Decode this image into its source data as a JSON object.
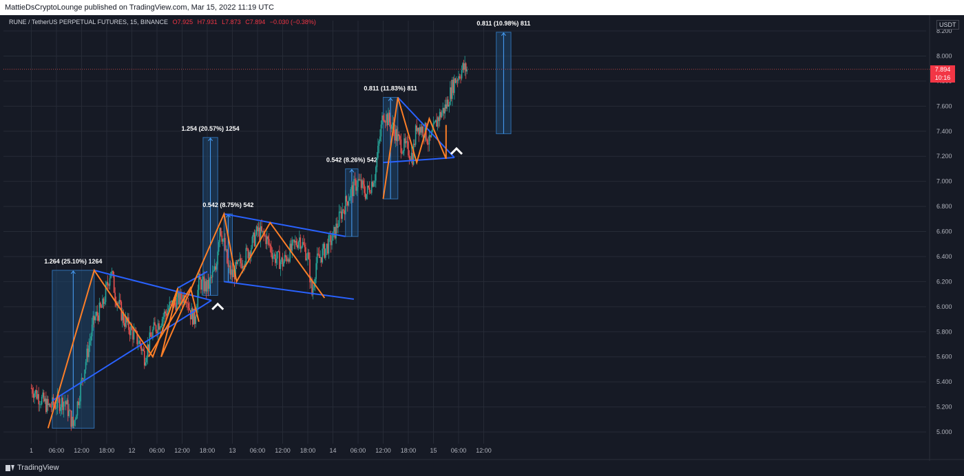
{
  "header": {
    "publish_text": "MattieDsCryptoLounge published on TradingView.com, Mar 15, 2022 11:19 UTC"
  },
  "symbol": {
    "name": "RUNE / TetherUS PERPETUAL FUTURES, 15, BINANCE",
    "open": "O7.925",
    "high": "H7.931",
    "low": "L7.873",
    "close": "C7.894",
    "change": "−0.030 (−0.38%)"
  },
  "price_axis": {
    "currency": "USDT",
    "current_price": "7.894",
    "countdown": "10:16"
  },
  "footer": {
    "brand": "TradingView"
  },
  "colors": {
    "background": "#161a25",
    "grid": "#262b36",
    "up": "#26a69a",
    "down": "#ef5350",
    "trendline": "#2962ff",
    "zigzag": "#ff7f27",
    "range_fill": "#1e4d7b",
    "price_tag": "#f23645"
  },
  "chart_data": {
    "type": "candlestick",
    "ylim": [
      4.9,
      8.3
    ],
    "yticks": [
      "5.000",
      "5.200",
      "5.400",
      "5.600",
      "5.800",
      "6.000",
      "6.200",
      "6.400",
      "6.600",
      "6.800",
      "7.000",
      "7.200",
      "7.400",
      "7.600",
      "7.800",
      "8.000",
      "8.200"
    ],
    "xticks": [
      "1",
      "06:00",
      "12:00",
      "18:00",
      "12",
      "06:00",
      "12:00",
      "18:00",
      "13",
      "06:00",
      "12:00",
      "18:00",
      "14",
      "06:00",
      "12:00",
      "18:00",
      "15",
      "06:00",
      "12:00"
    ],
    "close_path": [
      [
        0,
        5.35
      ],
      [
        4,
        5.2
      ],
      [
        8,
        5.25
      ],
      [
        10,
        5.05
      ],
      [
        12,
        5.4
      ],
      [
        15,
        5.9
      ],
      [
        17,
        6.0
      ],
      [
        19,
        6.3
      ],
      [
        20,
        6.1
      ],
      [
        22,
        5.9
      ],
      [
        24,
        5.8
      ],
      [
        26,
        5.7
      ],
      [
        27,
        5.6
      ],
      [
        29,
        5.8
      ],
      [
        31,
        5.9
      ],
      [
        33,
        6.0
      ],
      [
        35,
        6.05
      ],
      [
        37,
        6.1
      ],
      [
        38,
        5.95
      ],
      [
        39,
        5.9
      ],
      [
        40,
        6.2
      ],
      [
        42,
        6.15
      ],
      [
        44,
        6.3
      ],
      [
        45,
        6.65
      ],
      [
        46,
        6.5
      ],
      [
        47,
        6.3
      ],
      [
        48,
        6.25
      ],
      [
        50,
        6.35
      ],
      [
        52,
        6.45
      ],
      [
        54,
        6.6
      ],
      [
        56,
        6.55
      ],
      [
        58,
        6.4
      ],
      [
        60,
        6.35
      ],
      [
        62,
        6.45
      ],
      [
        64,
        6.55
      ],
      [
        66,
        6.4
      ],
      [
        67,
        6.1
      ],
      [
        68,
        6.35
      ],
      [
        70,
        6.45
      ],
      [
        72,
        6.55
      ],
      [
        74,
        6.75
      ],
      [
        76,
        6.9
      ],
      [
        78,
        7.0
      ],
      [
        80,
        6.9
      ],
      [
        82,
        7.05
      ],
      [
        83,
        7.3
      ],
      [
        84,
        7.55
      ],
      [
        86,
        7.45
      ],
      [
        88,
        7.3
      ],
      [
        90,
        7.25
      ],
      [
        91,
        7.2
      ],
      [
        92,
        7.45
      ],
      [
        94,
        7.4
      ],
      [
        95,
        7.3
      ],
      [
        97,
        7.5
      ],
      [
        99,
        7.6
      ],
      [
        101,
        7.8
      ],
      [
        103,
        7.9
      ],
      [
        104,
        7.894
      ]
    ],
    "ranges": [
      {
        "label": "1.264 (25.10%) 1264",
        "from": "05:00 Mar 11",
        "to": "15:00 Mar 11",
        "low": 5.03,
        "high": 6.29
      },
      {
        "label": "1.254 (20.57%) 1254",
        "from": "17:00 Mar 12",
        "to": "20:30 Mar 12",
        "low": 6.09,
        "high": 7.35
      },
      {
        "label": "0.542 (8.75%) 542",
        "from": "22:00 Mar 12",
        "to": "00:00 Mar 13",
        "low": 6.2,
        "high": 6.74
      },
      {
        "label": "0.542 (8.26%) 542",
        "from": "03:00 Mar 14",
        "to": "06:00 Mar 14",
        "low": 6.56,
        "high": 7.1
      },
      {
        "label": "0.811 (11.83%) 811",
        "from": "12:00 Mar 14",
        "to": "15:30 Mar 14",
        "low": 6.86,
        "high": 7.67
      },
      {
        "label": "0.811 (10.98%) 811",
        "from": "15:00 Mar 15",
        "to": "18:30 Mar 15",
        "low": 7.38,
        "high": 8.19
      }
    ]
  }
}
